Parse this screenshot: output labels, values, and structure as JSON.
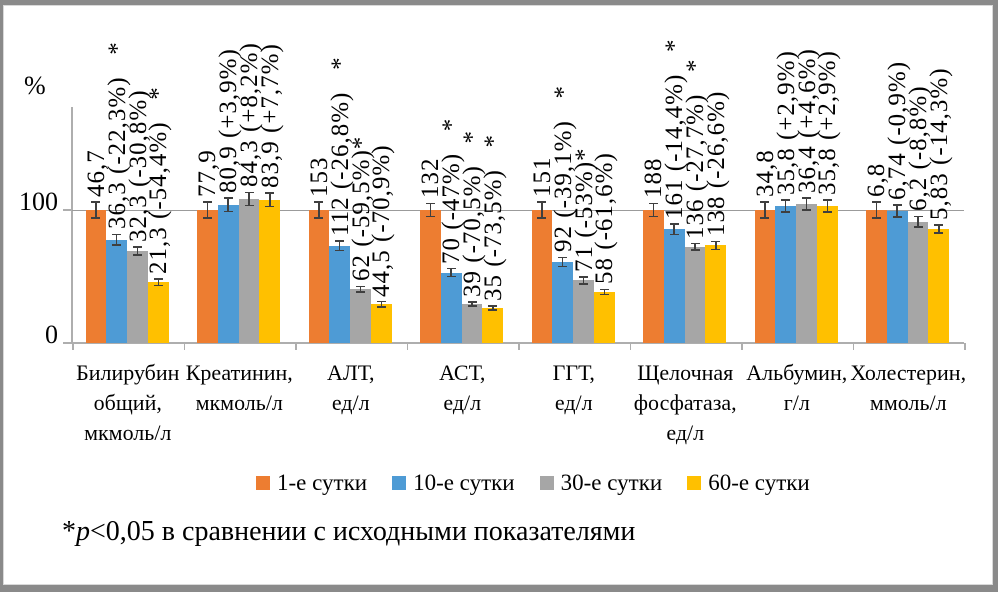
{
  "chart_data": {
    "type": "bar",
    "title": "",
    "ylabel": "%",
    "yticks": [
      0,
      100
    ],
    "ylim": [
      0,
      175
    ],
    "gridline_at": 100,
    "legend_position": "bottom",
    "series": [
      {
        "name": "1-е сутки",
        "color": "#ED7D31"
      },
      {
        "name": "10-е сутки",
        "color": "#4E9BD5"
      },
      {
        "name": "30-е сутки",
        "color": "#A6A6A6"
      },
      {
        "name": "60-е сутки",
        "color": "#FFC000"
      }
    ],
    "groups": [
      {
        "category": "Билирубин\nобщий,\nмкмоль/л",
        "labels": [
          "46,7",
          "36,3 (-22,3%)   *",
          "32,3 (-30,8%)",
          "21,3 (-54,4%)   *"
        ],
        "percents": [
          100,
          77.7,
          69.2,
          45.6
        ],
        "errors": [
          6,
          4,
          3,
          2.5
        ]
      },
      {
        "category": "Креатинин,\nмкмоль/л",
        "labels": [
          "77,9",
          "80,9 (+3,9%)",
          "84,3 (+8,2%)",
          "83,9 (+7,7%)"
        ],
        "percents": [
          100,
          103.9,
          108.2,
          107.7
        ],
        "errors": [
          6,
          5,
          5,
          5
        ]
      },
      {
        "category": "АЛТ,\nед/л",
        "labels": [
          "153",
          "112 (-26,8%)   *",
          "62 (-59,5%)*",
          "44,5 (-70,9%)"
        ],
        "percents": [
          100,
          73.2,
          40.5,
          29.1
        ],
        "errors": [
          6,
          3.5,
          2,
          2
        ]
      },
      {
        "category": "АСТ,\nед/л",
        "labels": [
          "132",
          "70 (-47%)   *",
          "39 (-70,5%)   *",
          "35 (-73,5%)   *"
        ],
        "percents": [
          100,
          53,
          29.5,
          26.5
        ],
        "errors": [
          5,
          3,
          1.5,
          1.5
        ]
      },
      {
        "category": "ГГТ,\nед/л",
        "labels": [
          "151",
          "92 (-39,1%)   *",
          "71 (-53%)*",
          "58 (-61,6%)"
        ],
        "percents": [
          100,
          60.9,
          47,
          38.4
        ],
        "errors": [
          6,
          3.5,
          2.5,
          2
        ]
      },
      {
        "category": "Щелочная\nфосфатаза,\nед/л",
        "labels": [
          "188",
          "161 (-14,4%)   *",
          "136 (-27,7%)   *",
          "138 (-26,6%)"
        ],
        "percents": [
          100,
          85.6,
          72.3,
          73.4
        ],
        "errors": [
          5,
          4,
          2.5,
          3
        ]
      },
      {
        "category": "Альбумин,\nг/л",
        "labels": [
          "34,8",
          "35,8 (+2,9%)",
          "36,4 (+4,6%)",
          "35,8 (+2,9%)"
        ],
        "percents": [
          100,
          102.9,
          104.6,
          102.9
        ],
        "errors": [
          6,
          4.5,
          4.5,
          4.5
        ]
      },
      {
        "category": "Холестерин,\nммоль/л",
        "labels": [
          "6,8",
          "6,74 (-0,9%)",
          "6,2 (-8,8%)",
          "5,83 (-14,3%)"
        ],
        "percents": [
          100,
          99.1,
          91.2,
          85.7
        ],
        "errors": [
          6,
          4.5,
          4,
          3
        ]
      }
    ]
  },
  "footnote": {
    "star": "*",
    "p": "p",
    "rest": "<0,05 в сравнении с исходными показателями"
  }
}
